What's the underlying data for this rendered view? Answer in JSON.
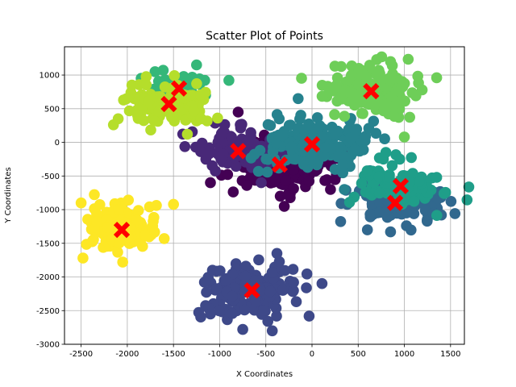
{
  "chart_data": {
    "type": "scatter",
    "title": "Scatter Plot of Points",
    "xlabel": "X Coordinates",
    "ylabel": "Y Coordinates",
    "xlim": [
      -2680,
      1650
    ],
    "ylim": [
      -3000,
      1420
    ],
    "xticks": [
      -2500,
      -2000,
      -1500,
      -1000,
      -500,
      0,
      500,
      1000,
      1500
    ],
    "yticks": [
      -3000,
      -2500,
      -2000,
      -1500,
      -1000,
      -500,
      0,
      500,
      1000
    ],
    "grid": true,
    "clusters": [
      {
        "color": "#440154",
        "center": [
          -350,
          -330
        ],
        "spread": [
          260,
          190
        ],
        "count": 240,
        "outliers": [
          [
            -800,
            450
          ],
          [
            -300,
            -950
          ],
          [
            200,
            -700
          ],
          [
            -1100,
            -600
          ]
        ]
      },
      {
        "color": "#482878",
        "center": [
          -800,
          -130
        ],
        "spread": [
          230,
          150
        ],
        "count": 110,
        "outliers": [
          [
            -1150,
            -250
          ],
          [
            -550,
            -600
          ]
        ]
      },
      {
        "color": "#3e4989",
        "center": [
          -650,
          -2200
        ],
        "spread": [
          260,
          190
        ],
        "count": 170,
        "outliers": [
          [
            -1100,
            -2550
          ],
          [
            -750,
            -2780
          ],
          [
            -430,
            -2800
          ],
          [
            -380,
            -1650
          ],
          [
            -200,
            -2080
          ]
        ]
      },
      {
        "color": "#31688e",
        "center": [
          900,
          -900
        ],
        "spread": [
          260,
          140
        ],
        "count": 140,
        "outliers": [
          [
            600,
            -1300
          ],
          [
            1400,
            -1080
          ],
          [
            850,
            -1330
          ]
        ]
      },
      {
        "color": "#26828e",
        "center": [
          0,
          -30
        ],
        "spread": [
          270,
          170
        ],
        "count": 230,
        "outliers": [
          [
            -150,
            650
          ],
          [
            350,
            -700
          ],
          [
            -450,
            250
          ]
        ]
      },
      {
        "color": "#1f9e89",
        "center": [
          960,
          -650
        ],
        "spread": [
          230,
          150
        ],
        "count": 110,
        "outliers": [
          [
            1350,
            -520
          ],
          [
            1430,
            -760
          ],
          [
            800,
            -150
          ],
          [
            950,
            -250
          ]
        ]
      },
      {
        "color": "#35b779",
        "center": [
          -1440,
          800
        ],
        "spread": [
          130,
          110
        ],
        "count": 60,
        "outliers": [
          [
            -1250,
            1150
          ],
          [
            -1700,
            1050
          ],
          [
            -900,
            920
          ],
          [
            -1850,
            950
          ]
        ]
      },
      {
        "color": "#6ece58",
        "center": [
          640,
          760
        ],
        "spread": [
          240,
          180
        ],
        "count": 190,
        "outliers": [
          [
            1350,
            960
          ],
          [
            700,
            1230
          ],
          [
            850,
            1200
          ],
          [
            1000,
            80
          ]
        ]
      },
      {
        "color": "#b5de2b",
        "center": [
          -1550,
          570
        ],
        "spread": [
          200,
          170
        ],
        "count": 130,
        "outliers": [
          [
            -2150,
            260
          ],
          [
            -1950,
            850
          ],
          [
            -1200,
            350
          ],
          [
            -1350,
            120
          ]
        ]
      },
      {
        "color": "#fde725",
        "center": [
          -2060,
          -1300
        ],
        "spread": [
          190,
          160
        ],
        "count": 160,
        "outliers": [
          [
            -2480,
            -1720
          ],
          [
            -2500,
            -900
          ],
          [
            -1500,
            -920
          ],
          [
            -2050,
            -1780
          ],
          [
            -1600,
            -1430
          ]
        ]
      }
    ],
    "centroids": [
      {
        "x": -350,
        "y": -330
      },
      {
        "x": -800,
        "y": -130
      },
      {
        "x": -650,
        "y": -2200
      },
      {
        "x": 900,
        "y": -900
      },
      {
        "x": 0,
        "y": -30
      },
      {
        "x": 960,
        "y": -650
      },
      {
        "x": -1440,
        "y": 800
      },
      {
        "x": 640,
        "y": 760
      },
      {
        "x": -1550,
        "y": 570
      },
      {
        "x": -2060,
        "y": -1300
      }
    ],
    "centroid_marker": "X",
    "centroid_color": "#ff0000"
  }
}
